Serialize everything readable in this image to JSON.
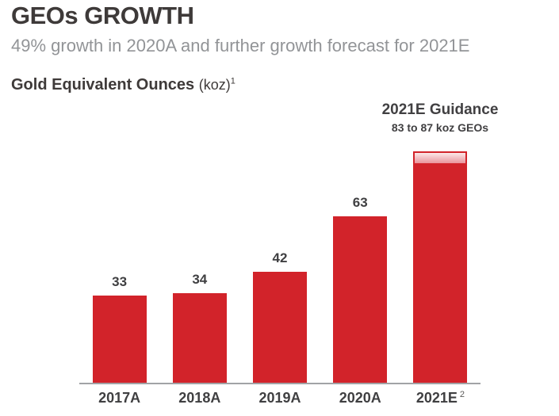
{
  "page": {
    "title": "GEOs GROWTH",
    "subtitle": "49% growth in 2020A and further growth forecast for 2021E"
  },
  "section": {
    "label_bold": "Gold Equivalent Ounces",
    "label_unit": "(koz)",
    "footnote_marker": "1"
  },
  "annotation": {
    "line1": "2021E Guidance",
    "line2": "83 to 87 koz GEOs"
  },
  "chart_data": {
    "type": "bar",
    "title": "Gold Equivalent Ounces (koz)",
    "categories": [
      "2017A",
      "2018A",
      "2019A",
      "2020A",
      "2021E"
    ],
    "values": [
      33,
      34,
      42,
      63,
      null
    ],
    "bar_labels": [
      "33",
      "34",
      "42",
      "63",
      ""
    ],
    "category_superscripts": [
      "",
      "",
      "",
      "",
      "2"
    ],
    "guidance_bar": {
      "category": "2021E",
      "range_low": 83,
      "range_high": 87,
      "label": "2021E Guidance",
      "sublabel": "83 to 87 koz GEOs"
    },
    "ylabel": "koz GEOs",
    "ylim": [
      0,
      90
    ],
    "grid": false,
    "legend": false
  },
  "colors": {
    "bar": "#d2232a",
    "cap_gradient_top": "#fbe7e8",
    "cap_gradient_bottom": "#ea949b",
    "axis": "#a1a3a6",
    "title_text": "#3e3a39",
    "subtitle_text": "#929497",
    "label_text": "#3f3f41"
  }
}
